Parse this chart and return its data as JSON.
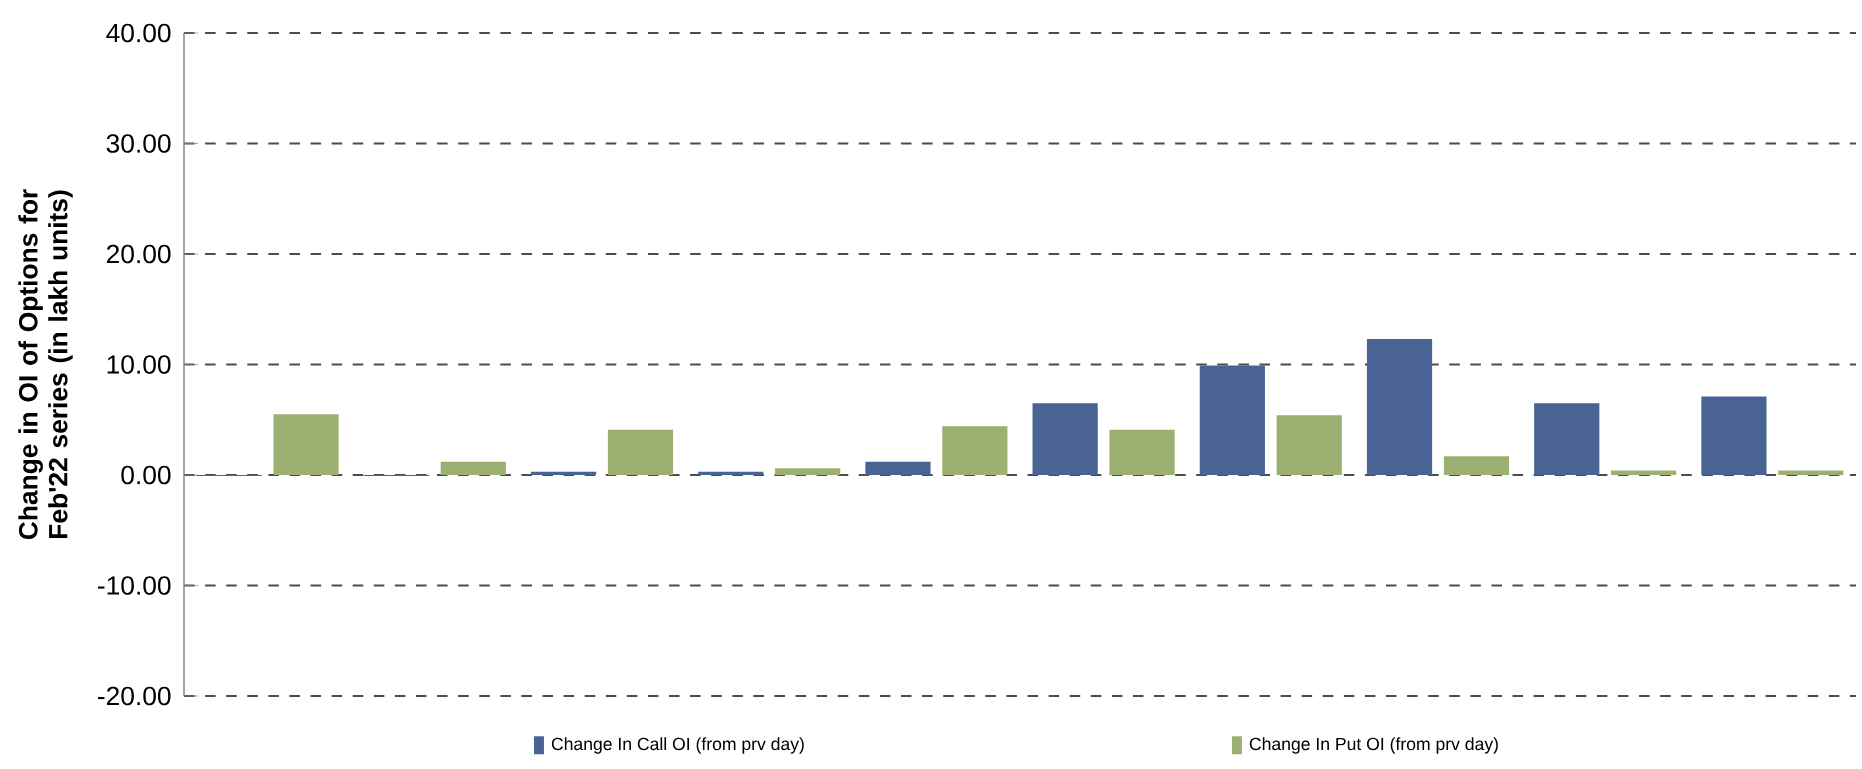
{
  "chart_data": {
    "type": "bar",
    "ylabel": "Change in OI of Options for Feb'22 series (in lakh units)",
    "categories": [
      null,
      null,
      null,
      null,
      null,
      null,
      null,
      null,
      null,
      null
    ],
    "series": [
      {
        "name": "Change In Call OI (from prv day)",
        "color": "#4a6395",
        "values": [
          -0.1,
          -0.1,
          0.3,
          0.3,
          1.2,
          6.5,
          9.9,
          12.3,
          6.5,
          7.1
        ]
      },
      {
        "name": "Change In Put OI (from prv day)",
        "color": "#9bb071",
        "values": [
          5.5,
          1.2,
          4.1,
          0.6,
          4.4,
          4.1,
          5.4,
          1.7,
          0.4,
          0.4
        ]
      }
    ],
    "ylim": [
      -20,
      40
    ],
    "yticks": [
      {
        "value": -20,
        "label": "-20.00"
      },
      {
        "value": -10,
        "label": "-10.00"
      },
      {
        "value": 0,
        "label": "0.00"
      },
      {
        "value": 10,
        "label": "10.00"
      },
      {
        "value": 20,
        "label": "20.00"
      },
      {
        "value": 30,
        "label": "30.00"
      },
      {
        "value": 40,
        "label": "40.00"
      }
    ],
    "grid": true,
    "legend": "bottom"
  }
}
